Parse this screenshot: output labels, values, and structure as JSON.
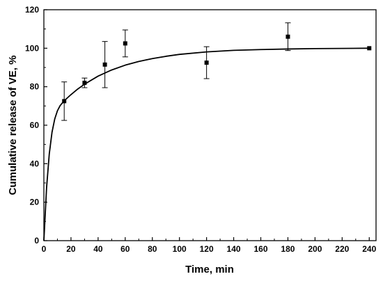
{
  "chart_data": {
    "type": "scatter",
    "title": "",
    "xlabel": "Time, min",
    "ylabel": "Cumulative release of VE, %",
    "xlim": [
      0,
      245
    ],
    "ylim": [
      0,
      120
    ],
    "x_ticks": [
      0,
      20,
      40,
      60,
      80,
      100,
      120,
      140,
      160,
      180,
      200,
      220,
      240
    ],
    "y_ticks": [
      0,
      20,
      40,
      60,
      80,
      100,
      120
    ],
    "grid": false,
    "legend": "none",
    "series": [
      {
        "type": "scatter",
        "marker": "square",
        "color": "#000000",
        "x": [
          15,
          30,
          45,
          60,
          120,
          180,
          240
        ],
        "y": [
          72.5,
          82,
          91.5,
          102.5,
          92.5,
          106,
          100
        ],
        "error": [
          10,
          2.5,
          12,
          7,
          8.3,
          7.2,
          0
        ]
      },
      {
        "type": "line",
        "color": "#000000",
        "x": [
          0,
          2,
          4,
          6,
          8,
          10,
          12,
          15,
          20,
          25,
          30,
          40,
          50,
          60,
          70,
          80,
          90,
          100,
          120,
          140,
          160,
          180,
          200,
          220,
          240
        ],
        "y": [
          0,
          27.5,
          45.2,
          56.3,
          63.2,
          67.5,
          70.2,
          72.7,
          75.9,
          78.8,
          81.3,
          85.5,
          88.7,
          91.2,
          93.1,
          94.6,
          95.8,
          96.8,
          98.1,
          98.9,
          99.3,
          99.6,
          99.8,
          99.9,
          100
        ]
      }
    ]
  }
}
